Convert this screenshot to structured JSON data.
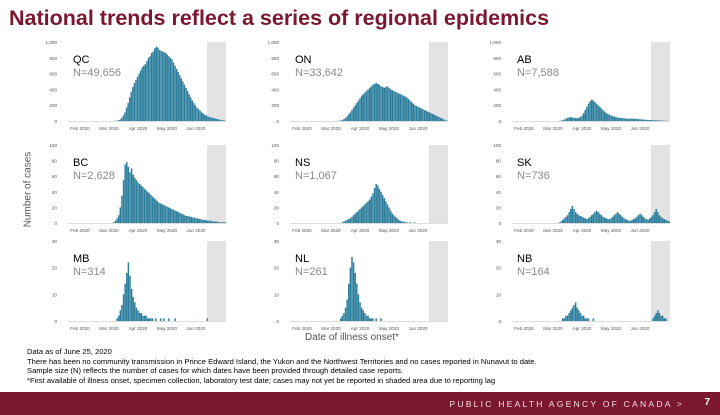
{
  "title": "National trends reflect a series of regional epidemics",
  "ylabel": "Number of cases",
  "xlabel": "Date of illness onset*",
  "notes": [
    "Data as of June 25, 2020",
    "There has been no community transmission in Prince Edward Island, the Yukon and the Northwest Territories and no cases reported in Nunavut to date.",
    "Sample size (N) reflects the number of cases for which dates have been provided through detailed case reports.",
    "*First available of illness onset, specimen collection, laboratory test date; cases may not yet be reported in shaded area due to reporting lag"
  ],
  "footer": {
    "agency": "PUBLIC HEALTH AGENCY OF CANADA >",
    "page": "7"
  },
  "colors": {
    "bar": "#2a7d9c",
    "shade": "#e3e3e3",
    "title": "#7b1830",
    "footer": "#7b1830"
  },
  "chart_data": [
    {
      "type": "bar",
      "province": "QC",
      "n_label": "N=49,656",
      "ylim": [
        0,
        1000
      ],
      "yticks": [
        "0",
        "200",
        "400",
        "600",
        "800",
        "1,000"
      ],
      "xticks": [
        "Feb 2020",
        "Mar 2020",
        "Apr 2020",
        "May 2020",
        "Jun 2020"
      ],
      "shaded_period": "after Jun 2020 (reporting lag)",
      "values": [
        0,
        0,
        0,
        0,
        0,
        0,
        0,
        0,
        0,
        0,
        0,
        0,
        0,
        0,
        0,
        0,
        0,
        0,
        0,
        0,
        0,
        0,
        0,
        0,
        0,
        0,
        0,
        0,
        1,
        2,
        3,
        5,
        10,
        20,
        40,
        70,
        110,
        170,
        230,
        300,
        370,
        430,
        480,
        520,
        560,
        600,
        640,
        680,
        700,
        720,
        760,
        800,
        820,
        860,
        880,
        920,
        940,
        930,
        900,
        890,
        880,
        870,
        860,
        840,
        820,
        800,
        780,
        740,
        700,
        660,
        620,
        580,
        540,
        500,
        460,
        420,
        380,
        340,
        300,
        260,
        230,
        200,
        170,
        150,
        130,
        110,
        95,
        80,
        70,
        60,
        50,
        45,
        40,
        35,
        30,
        25,
        20,
        15,
        10,
        8,
        5
      ]
    },
    {
      "type": "bar",
      "province": "ON",
      "n_label": "N=33,642",
      "ylim": [
        0,
        1000
      ],
      "yticks": [
        "0",
        "200",
        "400",
        "600",
        "800",
        "1,000"
      ],
      "xticks": [
        "Feb 2020",
        "Mar 2020",
        "Apr 2020",
        "May 2020",
        "Jun 2020"
      ],
      "shaded_period": "after Jun 2020 (reporting lag)",
      "values": [
        0,
        0,
        0,
        0,
        0,
        0,
        0,
        0,
        0,
        0,
        0,
        0,
        0,
        0,
        0,
        0,
        0,
        0,
        0,
        0,
        0,
        0,
        0,
        0,
        0,
        0,
        0,
        0,
        1,
        2,
        3,
        6,
        12,
        24,
        40,
        60,
        85,
        110,
        140,
        170,
        200,
        230,
        260,
        290,
        320,
        340,
        360,
        380,
        400,
        420,
        440,
        460,
        470,
        480,
        470,
        460,
        440,
        430,
        420,
        430,
        440,
        420,
        400,
        390,
        380,
        370,
        360,
        350,
        340,
        330,
        320,
        310,
        300,
        280,
        260,
        240,
        220,
        200,
        190,
        180,
        170,
        160,
        150,
        140,
        130,
        120,
        110,
        100,
        90,
        80,
        70,
        60,
        50,
        40,
        30,
        20,
        10,
        5
      ]
    },
    {
      "type": "bar",
      "province": "AB",
      "n_label": "N=7,588",
      "ylim": [
        0,
        1000
      ],
      "yticks": [
        "0",
        "200",
        "400",
        "600",
        "800",
        "1,000"
      ],
      "xticks": [
        "Feb 2020",
        "Mar 2020",
        "Apr 2020",
        "May 2020",
        "Jun 2020"
      ],
      "shaded_period": "after Jun 2020 (reporting lag)",
      "values": [
        0,
        0,
        0,
        0,
        0,
        0,
        0,
        0,
        0,
        0,
        0,
        0,
        0,
        0,
        0,
        0,
        0,
        0,
        0,
        0,
        0,
        0,
        0,
        0,
        0,
        0,
        0,
        0,
        0,
        2,
        5,
        10,
        20,
        30,
        40,
        45,
        50,
        45,
        40,
        38,
        36,
        40,
        50,
        70,
        100,
        140,
        180,
        220,
        250,
        270,
        260,
        240,
        220,
        200,
        180,
        160,
        140,
        120,
        100,
        90,
        80,
        70,
        60,
        55,
        50,
        45,
        40,
        38,
        36,
        34,
        32,
        30,
        28,
        30,
        32,
        30,
        28,
        26,
        24,
        22,
        20,
        18,
        16,
        15,
        14,
        13,
        12,
        11,
        10,
        9,
        8,
        7,
        6,
        5,
        4,
        3,
        2,
        1
      ]
    },
    {
      "type": "bar",
      "province": "BC",
      "n_label": "N=2,628",
      "ylim": [
        0,
        100
      ],
      "yticks": [
        "0",
        "20",
        "40",
        "60",
        "80",
        "100"
      ],
      "xticks": [
        "Feb 2020",
        "Mar 2020",
        "Apr 2020",
        "May 2020",
        "Jun 2020"
      ],
      "shaded_period": "after Jun 2020 (reporting lag)",
      "values": [
        0,
        0,
        0,
        0,
        0,
        0,
        0,
        0,
        0,
        0,
        0,
        0,
        0,
        0,
        0,
        0,
        0,
        0,
        0,
        0,
        0,
        0,
        0,
        0,
        0,
        0,
        0,
        0,
        1,
        3,
        6,
        10,
        20,
        35,
        55,
        75,
        78,
        72,
        65,
        70,
        62,
        58,
        55,
        52,
        50,
        48,
        46,
        44,
        42,
        40,
        38,
        36,
        34,
        32,
        30,
        28,
        26,
        25,
        24,
        23,
        22,
        21,
        20,
        19,
        18,
        17,
        16,
        15,
        14,
        13,
        12,
        11,
        10,
        9,
        9,
        8,
        8,
        7,
        7,
        6,
        6,
        5,
        5,
        4,
        4,
        4,
        3,
        3,
        3,
        2,
        2,
        2,
        2,
        1,
        1,
        1,
        1,
        1
      ]
    },
    {
      "type": "bar",
      "province": "NS",
      "n_label": "N=1,067",
      "ylim": [
        0,
        100
      ],
      "yticks": [
        "0",
        "20",
        "40",
        "60",
        "80",
        "100"
      ],
      "xticks": [
        "Feb 2020",
        "Mar 2020",
        "Apr 2020",
        "May 2020",
        "Jun 2020"
      ],
      "shaded_period": "after Jun 2020 (reporting lag)",
      "values": [
        0,
        0,
        0,
        0,
        0,
        0,
        0,
        0,
        0,
        0,
        0,
        0,
        0,
        0,
        0,
        0,
        0,
        0,
        0,
        0,
        0,
        0,
        0,
        0,
        0,
        0,
        0,
        0,
        0,
        0,
        0,
        0,
        1,
        2,
        3,
        4,
        5,
        6,
        8,
        10,
        12,
        14,
        16,
        18,
        20,
        22,
        24,
        26,
        28,
        30,
        34,
        38,
        45,
        50,
        48,
        44,
        40,
        36,
        32,
        28,
        24,
        20,
        16,
        12,
        10,
        8,
        6,
        4,
        3,
        2,
        2,
        1,
        1,
        0,
        1,
        0,
        0,
        1,
        0,
        0,
        0,
        0,
        0,
        0,
        0,
        0,
        0,
        0,
        0,
        0,
        0,
        0,
        0,
        0,
        0,
        0,
        0,
        0
      ]
    },
    {
      "type": "bar",
      "province": "SK",
      "n_label": "N=736",
      "ylim": [
        0,
        100
      ],
      "yticks": [
        "0",
        "20",
        "40",
        "60",
        "80",
        "100"
      ],
      "xticks": [
        "Feb 2020",
        "Mar 2020",
        "Apr 2020",
        "May 2020",
        "Jun 2020"
      ],
      "shaded_period": "after Jun 2020 (reporting lag)",
      "values": [
        0,
        0,
        0,
        0,
        0,
        0,
        0,
        0,
        0,
        0,
        0,
        0,
        0,
        0,
        0,
        0,
        0,
        0,
        0,
        0,
        0,
        0,
        0,
        0,
        0,
        0,
        0,
        0,
        0,
        1,
        2,
        4,
        6,
        8,
        10,
        14,
        18,
        22,
        18,
        14,
        12,
        10,
        9,
        8,
        7,
        6,
        5,
        6,
        8,
        10,
        12,
        14,
        16,
        14,
        12,
        10,
        8,
        7,
        6,
        5,
        5,
        6,
        8,
        10,
        12,
        14,
        12,
        10,
        8,
        6,
        5,
        4,
        3,
        3,
        4,
        5,
        6,
        8,
        10,
        12,
        10,
        8,
        6,
        5,
        4,
        6,
        8,
        10,
        14,
        18,
        14,
        10,
        8,
        6,
        5,
        4,
        3,
        2
      ]
    },
    {
      "type": "bar",
      "province": "MB",
      "n_label": "N=314",
      "ylim": [
        0,
        30
      ],
      "yticks": [
        "0",
        "10",
        "20",
        "30"
      ],
      "xticks": [
        "Feb 2020",
        "Mar 2020",
        "Apr 2020",
        "May 2020",
        "Jun 2020"
      ],
      "shaded_period": "after Jun 2020 (reporting lag)",
      "values": [
        0,
        0,
        0,
        0,
        0,
        0,
        0,
        0,
        0,
        0,
        0,
        0,
        0,
        0,
        0,
        0,
        0,
        0,
        0,
        0,
        0,
        0,
        0,
        0,
        0,
        0,
        0,
        0,
        0,
        0,
        1,
        2,
        4,
        6,
        10,
        14,
        18,
        22,
        17,
        12,
        9,
        7,
        5,
        4,
        3,
        3,
        2,
        2,
        2,
        1,
        1,
        1,
        1,
        0,
        1,
        0,
        0,
        1,
        0,
        1,
        0,
        0,
        1,
        0,
        0,
        0,
        1,
        0,
        0,
        0,
        0,
        0,
        0,
        0,
        0,
        0,
        0,
        0,
        0,
        0,
        0,
        0,
        0,
        0,
        0,
        0,
        1,
        0,
        0,
        0,
        0,
        0,
        0,
        0,
        0,
        0,
        0,
        0
      ]
    },
    {
      "type": "bar",
      "province": "NL",
      "n_label": "N=261",
      "ylim": [
        0,
        30
      ],
      "yticks": [
        "0",
        "10",
        "20",
        "30"
      ],
      "xticks": [
        "Feb 2020",
        "Mar 2020",
        "Apr 2020",
        "May 2020",
        "Jun 2020"
      ],
      "shaded_period": "after Jun 2020 (reporting lag)",
      "values": [
        0,
        0,
        0,
        0,
        0,
        0,
        0,
        0,
        0,
        0,
        0,
        0,
        0,
        0,
        0,
        0,
        0,
        0,
        0,
        0,
        0,
        0,
        0,
        0,
        0,
        0,
        0,
        0,
        0,
        0,
        0,
        1,
        2,
        3,
        5,
        8,
        14,
        20,
        24,
        22,
        18,
        14,
        10,
        7,
        5,
        4,
        3,
        2,
        2,
        1,
        1,
        1,
        0,
        1,
        0,
        0,
        1,
        0,
        0,
        0,
        0,
        0,
        0,
        0,
        0,
        0,
        0,
        0,
        0,
        0,
        0,
        0,
        0,
        0,
        0,
        0,
        0,
        0,
        0,
        0,
        0,
        0,
        0,
        0,
        0,
        0,
        0,
        0,
        0,
        0,
        0,
        0,
        0,
        0,
        0,
        0,
        0,
        0
      ]
    },
    {
      "type": "bar",
      "province": "NB",
      "n_label": "N=164",
      "ylim": [
        0,
        30
      ],
      "yticks": [
        "0",
        "10",
        "20",
        "30"
      ],
      "xticks": [
        "Feb 2020",
        "Mar 2020",
        "Apr 2020",
        "May 2020",
        "Jun 2020"
      ],
      "shaded_period": "after Jun 2020 (reporting lag)",
      "values": [
        0,
        0,
        0,
        0,
        0,
        0,
        0,
        0,
        0,
        0,
        0,
        0,
        0,
        0,
        0,
        0,
        0,
        0,
        0,
        0,
        0,
        0,
        0,
        0,
        0,
        0,
        0,
        0,
        0,
        0,
        0,
        1,
        1,
        2,
        2,
        3,
        4,
        5,
        6,
        7,
        5,
        4,
        3,
        2,
        2,
        1,
        1,
        1,
        0,
        0,
        1,
        0,
        0,
        0,
        0,
        0,
        0,
        0,
        0,
        0,
        0,
        0,
        0,
        0,
        0,
        0,
        0,
        0,
        0,
        0,
        0,
        0,
        0,
        0,
        0,
        0,
        0,
        0,
        0,
        0,
        0,
        0,
        0,
        0,
        0,
        0,
        0,
        1,
        2,
        3,
        4,
        3,
        2,
        2,
        1,
        1,
        0,
        0
      ]
    }
  ]
}
